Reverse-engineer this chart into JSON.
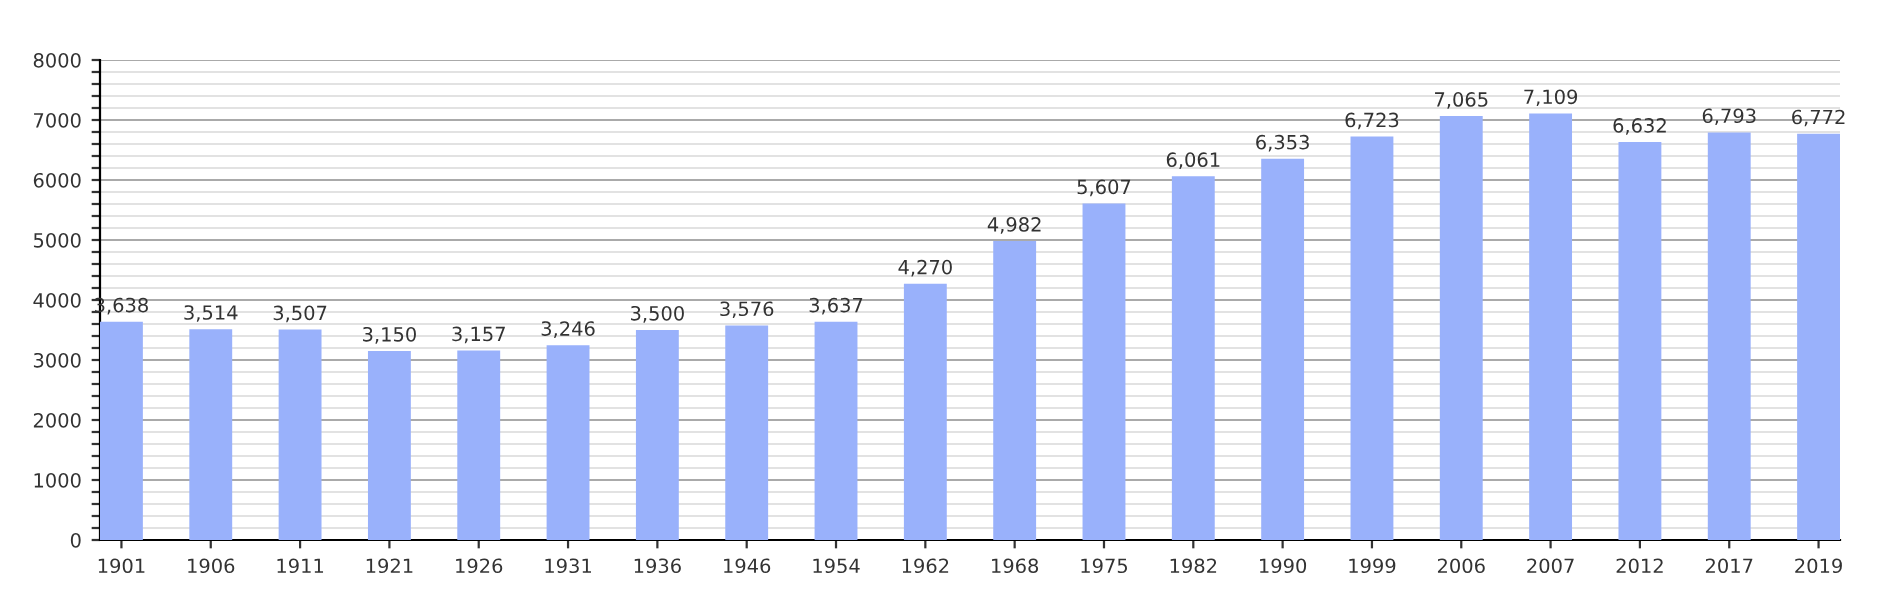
{
  "chart_data": {
    "type": "bar",
    "categories": [
      "1901",
      "1906",
      "1911",
      "1921",
      "1926",
      "1931",
      "1936",
      "1946",
      "1954",
      "1962",
      "1968",
      "1975",
      "1982",
      "1990",
      "1999",
      "2006",
      "2007",
      "2012",
      "2017",
      "2019"
    ],
    "values": [
      3638,
      3514,
      3507,
      3150,
      3157,
      3246,
      3500,
      3576,
      3637,
      4270,
      4982,
      5607,
      6061,
      6353,
      6723,
      7065,
      7109,
      6632,
      6793,
      6772
    ],
    "value_labels": [
      "3,638",
      "3,514",
      "3,507",
      "3,150",
      "3,157",
      "3,246",
      "3,500",
      "3,576",
      "3,637",
      "4,270",
      "4,982",
      "5,607",
      "6,061",
      "6,353",
      "6,723",
      "7,065",
      "7,109",
      "6,632",
      "6,793",
      "6,772"
    ],
    "color": "#99b1fb",
    "ylim": [
      0,
      8000
    ],
    "yticks": [
      0,
      {
        "value": 200,
        "label": null
      },
      {
        "value": 400,
        "label": null
      },
      {
        "value": 600,
        "label": null
      },
      {
        "value": 800,
        "label": null
      },
      1000,
      {
        "value": 1200,
        "label": null
      },
      {
        "value": 1400,
        "label": null
      },
      {
        "value": 1600,
        "label": null
      },
      {
        "value": 1800,
        "label": null
      },
      2000,
      {
        "value": 2200,
        "label": null
      },
      {
        "value": 2400,
        "label": null
      },
      {
        "value": 2600,
        "label": null
      },
      {
        "value": 2800,
        "label": null
      },
      3000,
      {
        "value": 3200,
        "label": null
      },
      {
        "value": 3400,
        "label": null
      },
      {
        "value": 3600,
        "label": null
      },
      {
        "value": 3800,
        "label": null
      },
      4000,
      {
        "value": 4200,
        "label": null
      },
      {
        "value": 4400,
        "label": null
      },
      {
        "value": 4600,
        "label": null
      },
      {
        "value": 4800,
        "label": null
      },
      5000,
      {
        "value": 5200,
        "label": null
      },
      {
        "value": 5400,
        "label": null
      },
      {
        "value": 5600,
        "label": null
      },
      {
        "value": 5800,
        "label": null
      },
      6000,
      {
        "value": 6200,
        "label": null
      },
      {
        "value": 6400,
        "label": null
      },
      {
        "value": 6600,
        "label": null
      },
      {
        "value": 6800,
        "label": null
      },
      7000,
      {
        "value": 7200,
        "label": null
      },
      {
        "value": 7400,
        "label": null
      },
      {
        "value": 7600,
        "label": null
      },
      {
        "value": 7800,
        "label": null
      },
      8000
    ],
    "grid": "y"
  }
}
